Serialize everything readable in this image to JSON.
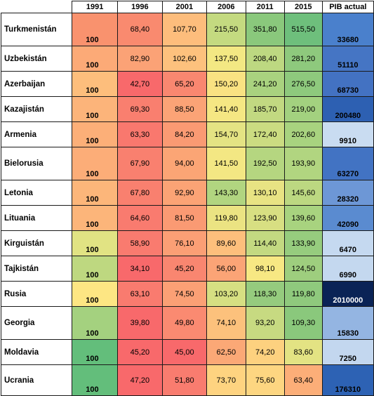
{
  "headers": [
    "",
    "1991",
    "1996",
    "2001",
    "2006",
    "2011",
    "2015",
    "PIB actual"
  ],
  "rows": [
    {
      "country": "Turkmenistán",
      "y1991": "100",
      "vals": [
        "68,40",
        "107,70",
        "215,50",
        "351,80",
        "515,50"
      ],
      "gdp": "33680",
      "colors": [
        "#f9926e",
        "#f98a6f",
        "#fdbd7c",
        "#c4da80",
        "#8ac87c",
        "#6ebf7c"
      ],
      "gdpColor": "#4a80cc",
      "gdpText": "#000000"
    },
    {
      "country": "Uzbekistán",
      "y1991": "100",
      "vals": [
        "82,90",
        "102,60",
        "137,50",
        "208,40",
        "281,20"
      ],
      "gdp": "51110",
      "colors": [
        "#fcaa77",
        "#fba276",
        "#fdc17d",
        "#f3e883",
        "#bdd881",
        "#8ec97d"
      ],
      "gdpColor": "#4575c4",
      "gdpText": "#000000"
    },
    {
      "country": "Azerbaijan",
      "y1991": "100",
      "vals": [
        "42,70",
        "65,20",
        "150,20",
        "241,20",
        "276,50"
      ],
      "gdp": "68730",
      "colors": [
        "#fdbe7c",
        "#f8696b",
        "#f98770",
        "#f9e282",
        "#a9d27f",
        "#8ec97d"
      ],
      "gdpColor": "#4372c2",
      "gdpText": "#000000"
    },
    {
      "country": "Kazajistán",
      "y1991": "100",
      "vals": [
        "69,30",
        "88,50",
        "141,40",
        "185,70",
        "219,00"
      ],
      "gdp": "200480",
      "colors": [
        "#fcb47a",
        "#f97f6f",
        "#fba376",
        "#f5e783",
        "#c2d981",
        "#a3d17f"
      ],
      "gdpColor": "#2d60b2",
      "gdpText": "#000000"
    },
    {
      "country": "Armenia",
      "y1991": "100",
      "vals": [
        "63,30",
        "84,20",
        "154,70",
        "172,40",
        "202,60"
      ],
      "gdp": "9910",
      "colors": [
        "#fcaf78",
        "#f9786e",
        "#fa9a73",
        "#e4e383",
        "#cbdc81",
        "#a8d37f"
      ],
      "gdpColor": "#c9dcf1",
      "gdpText": "#000000"
    },
    {
      "country": "Bielorusia",
      "y1991": "100",
      "vals": [
        "67,90",
        "94,00",
        "141,50",
        "192,50",
        "193,90"
      ],
      "gdp": "63270",
      "colors": [
        "#fcad78",
        "#f9806f",
        "#fba575",
        "#f3e783",
        "#b5d680",
        "#b1d580"
      ],
      "gdpColor": "#4273c3",
      "gdpText": "#000000"
    },
    {
      "country": "Letonia",
      "y1991": "100",
      "vals": [
        "67,80",
        "92,90",
        "143,30",
        "130,10",
        "145,60"
      ],
      "gdp": "28320",
      "colors": [
        "#fcb67a",
        "#f9806f",
        "#fba375",
        "#b1d580",
        "#e8e383",
        "#bcd881"
      ],
      "gdpColor": "#6d97d6",
      "gdpText": "#000000"
    },
    {
      "country": "Lituania",
      "y1991": "100",
      "vals": [
        "64,60",
        "81,50",
        "119,80",
        "123,90",
        "139,60"
      ],
      "gdp": "42090",
      "colors": [
        "#fcb57a",
        "#f97b6f",
        "#fa9a73",
        "#ebe382",
        "#d8df82",
        "#a8d37f"
      ],
      "gdpColor": "#5a8bd0",
      "gdpText": "#000000"
    },
    {
      "country": "Kirguistán",
      "y1991": "100",
      "vals": [
        "58,90",
        "76,10",
        "89,60",
        "114,40",
        "133,90"
      ],
      "gdp": "6470",
      "colors": [
        "#e1e383",
        "#f97b6f",
        "#fb9f75",
        "#fdbf7c",
        "#c3d981",
        "#96cc7e"
      ],
      "gdpColor": "#c5d9f0",
      "gdpText": "#000000"
    },
    {
      "country": "Tajkistán",
      "y1991": "100",
      "vals": [
        "34,10",
        "45,20",
        "56,00",
        "98,10",
        "124,50"
      ],
      "gdp": "6990",
      "colors": [
        "#bed880",
        "#f8696b",
        "#f98670",
        "#fba476",
        "#f7e883",
        "#9ece7e"
      ],
      "gdpColor": "#c4d8ef",
      "gdpText": "#000000"
    },
    {
      "country": "Rusia",
      "y1991": "100",
      "vals": [
        "63,10",
        "74,50",
        "103,20",
        "118,30",
        "119,80"
      ],
      "gdp": "2010000",
      "colors": [
        "#fde683",
        "#f97b6f",
        "#fba075",
        "#d6df82",
        "#95cb7e",
        "#8fc97d"
      ],
      "gdpColor": "#0a2356",
      "gdpText": "#ffffff"
    },
    {
      "country": "Georgia",
      "y1991": "100",
      "vals": [
        "39,80",
        "49,80",
        "74,10",
        "93,20",
        "109,30"
      ],
      "gdp": "15830",
      "colors": [
        "#a4d17f",
        "#f8696b",
        "#fa8a71",
        "#fcc17c",
        "#c7da81",
        "#8ac87c"
      ],
      "gdpColor": "#94b5e2",
      "gdpText": "#000000"
    },
    {
      "country": "Moldavia",
      "y1991": "100",
      "vals": [
        "45,20",
        "45,00",
        "62,50",
        "74,20",
        "83,60"
      ],
      "gdp": "7250",
      "colors": [
        "#63be7b",
        "#f8696b",
        "#f8696b",
        "#fba876",
        "#fdd17f",
        "#e3e383"
      ],
      "gdpColor": "#c3d7ef",
      "gdpText": "#000000"
    },
    {
      "country": "Ucrania",
      "y1991": "100",
      "vals": [
        "47,20",
        "51,80",
        "73,70",
        "75,60",
        "63,40"
      ],
      "gdp": "176310",
      "colors": [
        "#63be7b",
        "#f8696b",
        "#f97c6f",
        "#fed380",
        "#fdd681",
        "#fcae78"
      ],
      "gdpColor": "#2d62b4",
      "gdpText": "#000000"
    }
  ]
}
